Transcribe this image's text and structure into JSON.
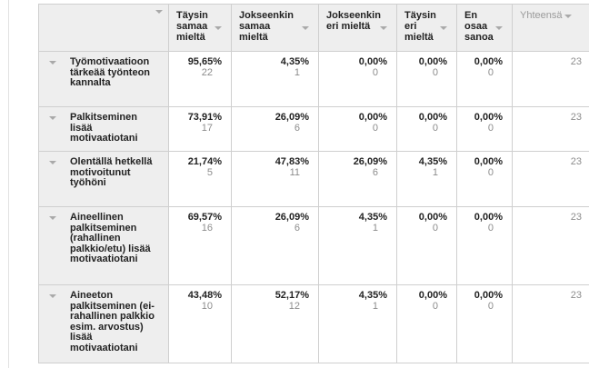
{
  "columns": [
    {
      "label": "Täysin samaa mieltä"
    },
    {
      "label": "Jokseenkin samaa mieltä"
    },
    {
      "label": "Jokseenkin eri mieltä"
    },
    {
      "label": "Täysin eri mieltä"
    },
    {
      "label": "En osaa sanoa"
    },
    {
      "label": "Yhteensä"
    }
  ],
  "rows": [
    {
      "label": "Työmotivaatioon tärkeää työnteon kannalta",
      "cells": [
        {
          "pct": "95,65%",
          "n": "22"
        },
        {
          "pct": "4,35%",
          "n": "1"
        },
        {
          "pct": "0,00%",
          "n": "0"
        },
        {
          "pct": "0,00%",
          "n": "0"
        },
        {
          "pct": "0,00%",
          "n": "0"
        }
      ],
      "total": "23"
    },
    {
      "label": "Palkitseminen lisää motivaatiotani",
      "cells": [
        {
          "pct": "73,91%",
          "n": "17"
        },
        {
          "pct": "26,09%",
          "n": "6"
        },
        {
          "pct": "0,00%",
          "n": "0"
        },
        {
          "pct": "0,00%",
          "n": "0"
        },
        {
          "pct": "0,00%",
          "n": "0"
        }
      ],
      "total": "23"
    },
    {
      "label": "Olentällä hetkellä motivoitunut työhöni",
      "cells": [
        {
          "pct": "21,74%",
          "n": "5"
        },
        {
          "pct": "47,83%",
          "n": "11"
        },
        {
          "pct": "26,09%",
          "n": "6"
        },
        {
          "pct": "4,35%",
          "n": "1"
        },
        {
          "pct": "0,00%",
          "n": "0"
        }
      ],
      "total": "23"
    },
    {
      "label": "Aineellinen palkitseminen (rahallinen palkkio/etu) lisää motivaatiotani",
      "cells": [
        {
          "pct": "69,57%",
          "n": "16"
        },
        {
          "pct": "26,09%",
          "n": "6"
        },
        {
          "pct": "4,35%",
          "n": "1"
        },
        {
          "pct": "0,00%",
          "n": "0"
        },
        {
          "pct": "0,00%",
          "n": "0"
        }
      ],
      "total": "23"
    },
    {
      "label": "Aineeton palkitseminen (ei-rahallinen palkkio esim. arvostus) lisää motivaatiotani",
      "cells": [
        {
          "pct": "43,48%",
          "n": "10"
        },
        {
          "pct": "52,17%",
          "n": "12"
        },
        {
          "pct": "4,35%",
          "n": "1"
        },
        {
          "pct": "0,00%",
          "n": "0"
        },
        {
          "pct": "0,00%",
          "n": "0"
        }
      ],
      "total": "23"
    }
  ]
}
